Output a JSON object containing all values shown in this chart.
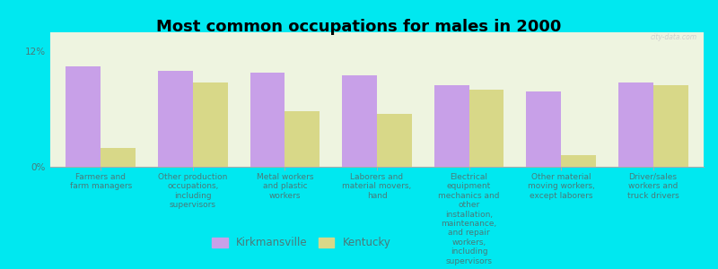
{
  "title": "Most common occupations for males in 2000",
  "categories": [
    "Farmers and\nfarm managers",
    "Other production\noccupations,\nincluding\nsupervisors",
    "Metal workers\nand plastic\nworkers",
    "Laborers and\nmaterial movers,\nhand",
    "Electrical\nequipment\nmechanics and\nother\ninstallation,\nmaintenance,\nand repair\nworkers,\nincluding\nsupervisors",
    "Other material\nmoving workers,\nexcept laborers",
    "Driver/sales\nworkers and\ntruck drivers"
  ],
  "kirkmansville": [
    10.5,
    10.0,
    9.8,
    9.5,
    8.5,
    7.8,
    8.8
  ],
  "kentucky": [
    2.0,
    8.8,
    5.8,
    5.5,
    8.0,
    1.2,
    8.5
  ],
  "ylim_max": 14,
  "ytick_vals": [
    0,
    12
  ],
  "ytick_labels": [
    "0%",
    "12%"
  ],
  "kirkmansville_color": "#c8a0e8",
  "kentucky_color": "#d8d888",
  "background_color": "#00e8f0",
  "plot_bg_color": "#eef4e0",
  "legend_kirkmansville": "Kirkmansville",
  "legend_kentucky": "Kentucky",
  "bar_width": 0.38,
  "title_fontsize": 13,
  "tick_label_fontsize": 6.5,
  "watermark": "city-data.com"
}
